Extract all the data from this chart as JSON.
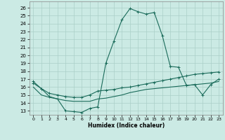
{
  "xlabel": "Humidex (Indice chaleur)",
  "xlim": [
    -0.5,
    23.5
  ],
  "ylim": [
    12.5,
    26.8
  ],
  "yticks": [
    13,
    14,
    15,
    16,
    17,
    18,
    19,
    20,
    21,
    22,
    23,
    24,
    25,
    26
  ],
  "xticks": [
    0,
    1,
    2,
    3,
    4,
    5,
    6,
    7,
    8,
    9,
    10,
    11,
    12,
    13,
    14,
    15,
    16,
    17,
    18,
    19,
    20,
    21,
    22,
    23
  ],
  "bg_color": "#cbeae4",
  "line_color": "#1a6b5a",
  "grid_color": "#aacfc8",
  "line1_y": [
    16.7,
    15.8,
    14.8,
    14.5,
    13.0,
    12.9,
    12.8,
    13.3,
    13.5,
    19.0,
    21.8,
    24.5,
    25.9,
    25.5,
    25.2,
    25.4,
    22.5,
    18.6,
    18.5,
    16.2,
    16.3,
    15.0,
    16.3,
    17.0
  ],
  "line2_y": [
    16.5,
    15.8,
    15.2,
    15.0,
    14.8,
    14.7,
    14.7,
    15.0,
    15.5,
    15.6,
    15.7,
    15.9,
    16.0,
    16.2,
    16.4,
    16.6,
    16.8,
    17.0,
    17.2,
    17.4,
    17.6,
    17.7,
    17.8,
    17.9
  ],
  "line3_y": [
    16.0,
    15.0,
    14.7,
    14.5,
    14.3,
    14.2,
    14.2,
    14.2,
    14.5,
    14.6,
    14.8,
    15.0,
    15.3,
    15.5,
    15.7,
    15.8,
    15.9,
    16.0,
    16.1,
    16.2,
    16.3,
    16.4,
    16.5,
    16.7
  ]
}
